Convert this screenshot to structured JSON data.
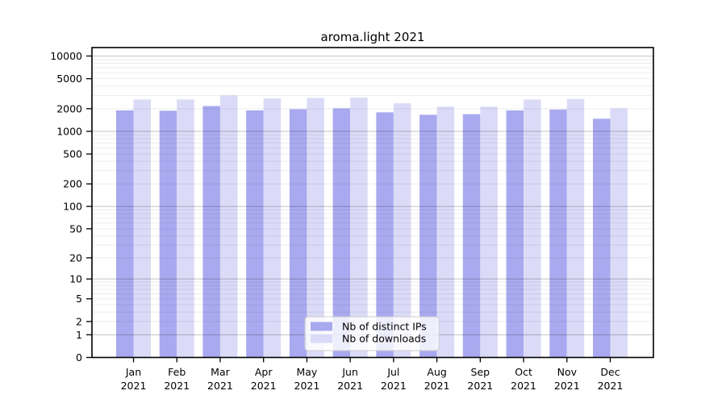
{
  "chart_data": {
    "type": "bar",
    "title": "aroma.light 2021",
    "categories": [
      "Jan",
      "Feb",
      "Mar",
      "Apr",
      "May",
      "Jun",
      "Jul",
      "Aug",
      "Sep",
      "Oct",
      "Nov",
      "Dec"
    ],
    "category_year": "2021",
    "x_tick_labels": [
      "Jan 2021",
      "Feb 2021",
      "Mar 2021",
      "Apr 2021",
      "May 2021",
      "Jun 2021",
      "Jul 2021",
      "Aug 2021",
      "Sep 2021",
      "Oct 2021",
      "Nov 2021",
      "Dec 2021"
    ],
    "series": [
      {
        "name": "Nb of distinct IPs",
        "color": "#a9a9f0",
        "values": [
          1900,
          1880,
          2170,
          1900,
          1970,
          2020,
          1790,
          1660,
          1690,
          1900,
          1950,
          1470
        ]
      },
      {
        "name": "Nb of downloads",
        "color": "#dbdbf8",
        "values": [
          2650,
          2650,
          2990,
          2730,
          2780,
          2800,
          2360,
          2130,
          2130,
          2650,
          2690,
          2020
        ]
      }
    ],
    "y_axis": {
      "scale": "log10(value+1)",
      "tick_values": [
        0,
        1,
        2,
        5,
        10,
        20,
        50,
        100,
        200,
        500,
        1000,
        2000,
        5000,
        10000
      ],
      "max_value_shown": 13000
    },
    "grid": {
      "orientation": "horizontal",
      "major_values": [
        1,
        10,
        100,
        1000,
        10000
      ],
      "major_color": "#c3c3c3",
      "minor_color": "#ececec"
    },
    "legend": {
      "position": "bottom-center",
      "entries": [
        "Nb of distinct IPs",
        "Nb of downloads"
      ],
      "background": "rgba(255,255,255,0.8)",
      "border_color": "#cccccc"
    },
    "frame_color": "#000000"
  }
}
